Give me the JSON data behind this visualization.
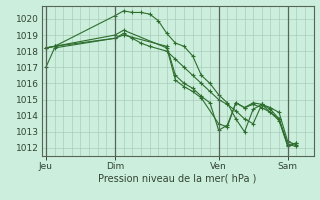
{
  "background_color": "#cceedd",
  "grid_color": "#aaccbb",
  "line_color": "#2d6e2d",
  "marker_color": "#2d6e2d",
  "title": "Pression niveau de la mer( hPa )",
  "ylim": [
    1011.5,
    1020.8
  ],
  "yticks": [
    1012,
    1013,
    1014,
    1015,
    1016,
    1017,
    1018,
    1019,
    1020
  ],
  "xtick_labels": [
    "Jeu",
    "Dim",
    "Ven",
    "Sam"
  ],
  "xtick_positions": [
    0,
    8,
    20,
    28
  ],
  "xlim": [
    -0.5,
    31.0
  ],
  "vlines": [
    0,
    8,
    20,
    28
  ],
  "series": [
    {
      "x": [
        0,
        1,
        8,
        9,
        10,
        11,
        12,
        13,
        14,
        15,
        16,
        17,
        18,
        19,
        20,
        21,
        22,
        23,
        24,
        25,
        26,
        27,
        28,
        29
      ],
      "y": [
        1018.2,
        1018.3,
        1020.2,
        1020.5,
        1020.4,
        1020.4,
        1020.3,
        1019.9,
        1019.1,
        1018.5,
        1018.3,
        1017.7,
        1016.5,
        1016.0,
        1015.3,
        1014.8,
        1013.8,
        1013.0,
        1014.4,
        1014.7,
        1014.2,
        1013.8,
        1012.2,
        1012.1
      ]
    },
    {
      "x": [
        0,
        1,
        8,
        9,
        10,
        11,
        12,
        14,
        15,
        16,
        17,
        18,
        19,
        20,
        21,
        22,
        23,
        24,
        25,
        26,
        27,
        28,
        29
      ],
      "y": [
        1017.0,
        1018.2,
        1018.8,
        1019.1,
        1018.8,
        1018.5,
        1018.3,
        1018.0,
        1017.5,
        1017.0,
        1016.5,
        1016.0,
        1015.5,
        1015.0,
        1014.7,
        1014.3,
        1013.8,
        1013.5,
        1014.7,
        1014.5,
        1014.2,
        1012.4,
        1012.2
      ]
    },
    {
      "x": [
        0,
        1,
        8,
        9,
        14,
        15,
        16,
        17,
        18,
        19,
        20,
        21,
        22,
        23,
        24,
        25,
        26,
        27,
        28,
        29
      ],
      "y": [
        1018.2,
        1018.3,
        1018.8,
        1019.0,
        1018.3,
        1016.5,
        1016.0,
        1015.7,
        1015.2,
        1014.8,
        1013.1,
        1013.4,
        1014.8,
        1014.5,
        1014.8,
        1014.7,
        1014.4,
        1013.8,
        1012.2,
        1012.3
      ]
    },
    {
      "x": [
        0,
        1,
        8,
        9,
        14,
        15,
        16,
        17,
        18,
        20,
        21,
        22,
        23,
        24,
        25,
        26,
        27,
        28,
        29
      ],
      "y": [
        1018.2,
        1018.3,
        1019.0,
        1019.3,
        1018.2,
        1016.2,
        1015.8,
        1015.5,
        1015.1,
        1013.5,
        1013.3,
        1014.8,
        1014.5,
        1014.7,
        1014.5,
        1014.2,
        1013.7,
        1012.1,
        1012.3
      ]
    }
  ]
}
